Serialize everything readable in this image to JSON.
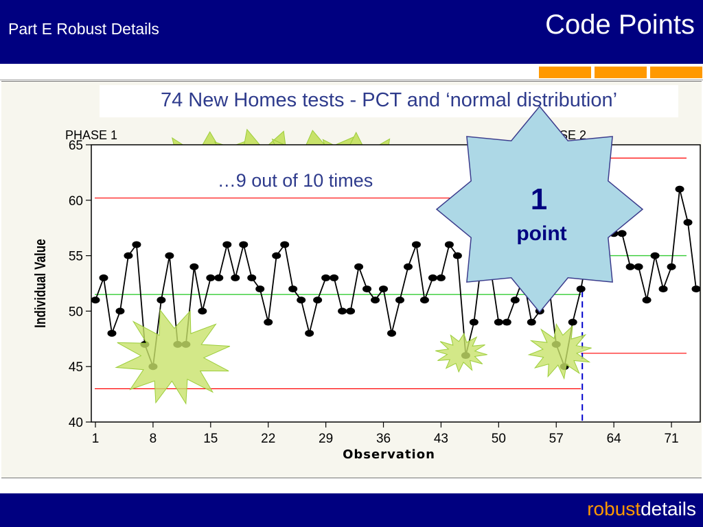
{
  "header": {
    "subtitle": "Part E Robust Details",
    "title": "Code Points"
  },
  "footer": {
    "brand_part1": "robust",
    "brand_part2": "details"
  },
  "colors": {
    "header": "#000080",
    "accent": "#ff9900",
    "burst": "#c8e26a",
    "burst_edge": "#9ccd3a",
    "star": "#add8e6",
    "limit": "#ff0000",
    "center": "#33cc33",
    "phase_split": "#0000cc"
  },
  "callouts": {
    "burst_text": "…9 out of 10 times",
    "star_number": "1",
    "star_word": "point"
  },
  "chart_data": {
    "type": "line",
    "title": "74 New Homes tests - PCT and ‘normal distribution’",
    "xlabel": "Observation",
    "ylabel": "Individual Value",
    "phase_labels": [
      "PHASE 1",
      "PHASE 2"
    ],
    "phase_split_after": 60,
    "xlim": [
      0.5,
      74.5
    ],
    "ylim": [
      40,
      65
    ],
    "x_ticks": [
      1,
      8,
      15,
      22,
      29,
      36,
      43,
      50,
      57,
      64,
      71
    ],
    "y_ticks": [
      40,
      45,
      50,
      55,
      60,
      65
    ],
    "phase1": {
      "ucl": 60.2,
      "center": 51.5,
      "lcl": 43.0
    },
    "phase2": {
      "ucl": 63.8,
      "center": 55.0,
      "lcl": 46.2
    },
    "series": [
      {
        "values": [
          51,
          53,
          48,
          50,
          55,
          56,
          47,
          45,
          51,
          55,
          47,
          47,
          54,
          50,
          53,
          53,
          56,
          53,
          56,
          53,
          52,
          49,
          55,
          56,
          52,
          51,
          48,
          51,
          53,
          53,
          50,
          50,
          54,
          52,
          51,
          52,
          48,
          51,
          54,
          56,
          51,
          53,
          53,
          56,
          55,
          46,
          49,
          55,
          54,
          49,
          49,
          51,
          53,
          49,
          50,
          53,
          47,
          45,
          49,
          52,
          56,
          57,
          57,
          57,
          57,
          54,
          54,
          51,
          55,
          52,
          54,
          61,
          58,
          52
        ]
      }
    ],
    "grid": false
  }
}
